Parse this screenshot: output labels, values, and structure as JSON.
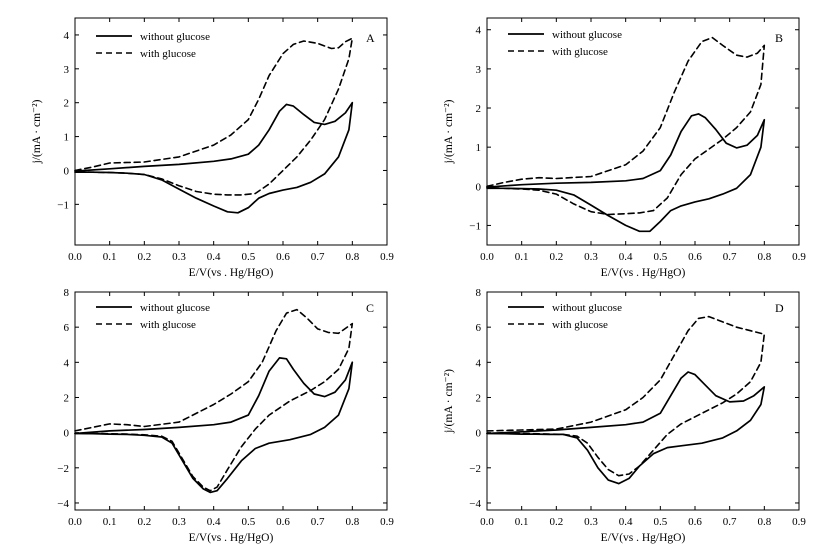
{
  "chart_data": [
    {
      "type": "line",
      "panel_label": "A",
      "xlabel": "E/V(vs . Hg/HgO)",
      "ylabel": "j/(mA · cm⁻²)",
      "xlim": [
        0.0,
        0.9
      ],
      "ylim": [
        -2.2,
        4.5
      ],
      "x_ticks": [
        "0.0",
        "0.1",
        "0.2",
        "0.3",
        "0.4",
        "0.5",
        "0.6",
        "0.7",
        "0.8",
        "0.9"
      ],
      "y_ticks": [
        -1,
        0,
        1,
        2,
        3,
        4
      ],
      "y_tick_labels": [
        "−1",
        "0",
        "1",
        "2",
        "3",
        "4"
      ],
      "grid": false,
      "legend_position": "top-left",
      "series": [
        {
          "name": "without glucose",
          "style": "solid",
          "x": [
            0.0,
            0.1,
            0.2,
            0.3,
            0.4,
            0.45,
            0.5,
            0.53,
            0.56,
            0.59,
            0.61,
            0.63,
            0.66,
            0.69,
            0.72,
            0.75,
            0.78,
            0.8,
            0.79,
            0.76,
            0.72,
            0.68,
            0.64,
            0.6,
            0.56,
            0.53,
            0.5,
            0.47,
            0.44,
            0.4,
            0.35,
            0.3,
            0.25,
            0.2,
            0.15,
            0.1,
            0.05,
            0.0
          ],
          "y": [
            -0.02,
            0.05,
            0.12,
            0.18,
            0.27,
            0.34,
            0.48,
            0.75,
            1.2,
            1.75,
            1.95,
            1.9,
            1.65,
            1.42,
            1.36,
            1.45,
            1.7,
            2.0,
            1.2,
            0.4,
            -0.1,
            -0.35,
            -0.5,
            -0.58,
            -0.68,
            -0.82,
            -1.1,
            -1.25,
            -1.22,
            -1.05,
            -0.82,
            -0.55,
            -0.28,
            -0.12,
            -0.08,
            -0.06,
            -0.05,
            -0.05
          ]
        },
        {
          "name": "with glucose",
          "style": "dashed",
          "x": [
            0.0,
            0.05,
            0.1,
            0.2,
            0.3,
            0.4,
            0.45,
            0.5,
            0.53,
            0.56,
            0.6,
            0.63,
            0.66,
            0.7,
            0.74,
            0.76,
            0.78,
            0.8,
            0.79,
            0.76,
            0.72,
            0.68,
            0.64,
            0.6,
            0.56,
            0.52,
            0.48,
            0.44,
            0.4,
            0.35,
            0.3,
            0.25,
            0.2,
            0.15,
            0.1,
            0.05,
            0.0
          ],
          "y": [
            0.0,
            0.1,
            0.22,
            0.25,
            0.4,
            0.75,
            1.05,
            1.5,
            2.1,
            2.8,
            3.45,
            3.72,
            3.82,
            3.75,
            3.6,
            3.62,
            3.8,
            3.9,
            3.3,
            2.4,
            1.5,
            0.9,
            0.4,
            0.0,
            -0.4,
            -0.68,
            -0.72,
            -0.72,
            -0.7,
            -0.62,
            -0.45,
            -0.25,
            -0.12,
            -0.08,
            -0.06,
            -0.05,
            -0.03
          ]
        }
      ]
    },
    {
      "type": "line",
      "panel_label": "B",
      "xlabel": "E/V(vs . Hg/HgO)",
      "ylabel": "j/(mA · cm⁻²)",
      "xlim": [
        0.0,
        0.9
      ],
      "ylim": [
        -1.5,
        4.3
      ],
      "x_ticks": [
        "0.0",
        "0.1",
        "0.2",
        "0.3",
        "0.4",
        "0.5",
        "0.6",
        "0.7",
        "0.8",
        "0.9"
      ],
      "y_ticks": [
        -1,
        0,
        1,
        2,
        3,
        4
      ],
      "y_tick_labels": [
        "−1",
        "0",
        "1",
        "2",
        "3",
        "4"
      ],
      "grid": false,
      "legend_position": "top-left",
      "series": [
        {
          "name": "without glucose",
          "style": "solid",
          "x": [
            0.0,
            0.1,
            0.2,
            0.3,
            0.4,
            0.45,
            0.5,
            0.53,
            0.56,
            0.59,
            0.61,
            0.63,
            0.66,
            0.69,
            0.72,
            0.75,
            0.78,
            0.8,
            0.79,
            0.76,
            0.72,
            0.68,
            0.64,
            0.6,
            0.56,
            0.53,
            0.5,
            0.47,
            0.44,
            0.4,
            0.35,
            0.3,
            0.25,
            0.2,
            0.15,
            0.1,
            0.05,
            0.0
          ],
          "y": [
            -0.02,
            0.04,
            0.08,
            0.1,
            0.14,
            0.2,
            0.4,
            0.8,
            1.4,
            1.8,
            1.85,
            1.75,
            1.45,
            1.1,
            0.98,
            1.05,
            1.3,
            1.7,
            1.0,
            0.3,
            -0.05,
            -0.2,
            -0.32,
            -0.4,
            -0.5,
            -0.62,
            -0.9,
            -1.15,
            -1.15,
            -1.0,
            -0.75,
            -0.48,
            -0.22,
            -0.1,
            -0.07,
            -0.06,
            -0.05,
            -0.05
          ]
        },
        {
          "name": "with glucose",
          "style": "dashed",
          "x": [
            0.0,
            0.05,
            0.1,
            0.15,
            0.2,
            0.3,
            0.4,
            0.45,
            0.5,
            0.54,
            0.58,
            0.62,
            0.65,
            0.68,
            0.72,
            0.75,
            0.78,
            0.8,
            0.79,
            0.76,
            0.72,
            0.68,
            0.64,
            0.6,
            0.56,
            0.52,
            0.48,
            0.44,
            0.4,
            0.35,
            0.3,
            0.25,
            0.2,
            0.15,
            0.1,
            0.05,
            0.0
          ],
          "y": [
            0.0,
            0.1,
            0.18,
            0.22,
            0.2,
            0.25,
            0.55,
            0.9,
            1.5,
            2.4,
            3.2,
            3.7,
            3.8,
            3.6,
            3.35,
            3.3,
            3.4,
            3.6,
            2.6,
            1.9,
            1.5,
            1.2,
            0.95,
            0.7,
            0.3,
            -0.3,
            -0.62,
            -0.68,
            -0.7,
            -0.72,
            -0.65,
            -0.45,
            -0.2,
            -0.1,
            -0.07,
            -0.05,
            -0.03
          ]
        }
      ]
    },
    {
      "type": "line",
      "panel_label": "C",
      "xlabel": "E/V(vs . Hg/HgO)",
      "ylabel": "",
      "xlim": [
        0.0,
        0.9
      ],
      "ylim": [
        -4.4,
        8.0
      ],
      "x_ticks": [
        "0.0",
        "0.1",
        "0.2",
        "0.3",
        "0.4",
        "0.5",
        "0.6",
        "0.7",
        "0.8",
        "0.9"
      ],
      "y_ticks": [
        -4,
        -2,
        0,
        2,
        4,
        6,
        8
      ],
      "y_tick_labels": [
        "−4",
        "−2",
        "0",
        "2",
        "4",
        "6",
        "8"
      ],
      "grid": false,
      "legend_position": "top-left",
      "series": [
        {
          "name": "without glucose",
          "style": "solid",
          "x": [
            0.0,
            0.1,
            0.2,
            0.3,
            0.4,
            0.45,
            0.5,
            0.53,
            0.56,
            0.59,
            0.61,
            0.63,
            0.66,
            0.69,
            0.72,
            0.75,
            0.78,
            0.8,
            0.79,
            0.76,
            0.72,
            0.68,
            0.62,
            0.56,
            0.52,
            0.48,
            0.44,
            0.41,
            0.39,
            0.37,
            0.34,
            0.31,
            0.28,
            0.25,
            0.2,
            0.15,
            0.1,
            0.05,
            0.0
          ],
          "y": [
            -0.05,
            0.1,
            0.18,
            0.3,
            0.45,
            0.6,
            1.0,
            2.1,
            3.5,
            4.25,
            4.2,
            3.6,
            2.8,
            2.2,
            2.05,
            2.3,
            3.0,
            4.0,
            2.5,
            1.0,
            0.3,
            -0.1,
            -0.4,
            -0.6,
            -0.9,
            -1.6,
            -2.6,
            -3.3,
            -3.4,
            -3.2,
            -2.6,
            -1.6,
            -0.6,
            -0.25,
            -0.15,
            -0.1,
            -0.08,
            -0.06,
            -0.05
          ]
        },
        {
          "name": "with glucose",
          "style": "dashed",
          "x": [
            0.0,
            0.05,
            0.1,
            0.15,
            0.2,
            0.3,
            0.4,
            0.45,
            0.5,
            0.54,
            0.58,
            0.61,
            0.64,
            0.67,
            0.7,
            0.73,
            0.76,
            0.8,
            0.79,
            0.76,
            0.72,
            0.68,
            0.62,
            0.56,
            0.52,
            0.48,
            0.44,
            0.41,
            0.39,
            0.37,
            0.34,
            0.31,
            0.28,
            0.25,
            0.2,
            0.15,
            0.1,
            0.05,
            0.0
          ],
          "y": [
            0.1,
            0.3,
            0.5,
            0.45,
            0.35,
            0.6,
            1.6,
            2.2,
            2.9,
            4.0,
            5.8,
            6.8,
            7.0,
            6.5,
            5.9,
            5.7,
            5.65,
            6.2,
            4.8,
            3.6,
            2.9,
            2.4,
            1.8,
            1.0,
            0.2,
            -0.8,
            -2.1,
            -3.1,
            -3.3,
            -3.1,
            -2.5,
            -1.5,
            -0.5,
            -0.2,
            -0.12,
            -0.08,
            -0.06,
            -0.05,
            -0.04
          ]
        }
      ]
    },
    {
      "type": "line",
      "panel_label": "D",
      "xlabel": "E/V(vs . Hg/HgO)",
      "ylabel": "j/(mA · cm⁻²)",
      "xlim": [
        0.0,
        0.9
      ],
      "ylim": [
        -4.4,
        8.0
      ],
      "x_ticks": [
        "0.0",
        "0.1",
        "0.2",
        "0.3",
        "0.4",
        "0.5",
        "0.6",
        "0.7",
        "0.8",
        "0.9"
      ],
      "y_ticks": [
        -4,
        -2,
        0,
        2,
        4,
        6,
        8
      ],
      "y_tick_labels": [
        "−4",
        "−2",
        "0",
        "2",
        "4",
        "6",
        "8"
      ],
      "grid": false,
      "legend_position": "top-left",
      "series": [
        {
          "name": "without glucose",
          "style": "solid",
          "x": [
            0.0,
            0.1,
            0.2,
            0.3,
            0.4,
            0.45,
            0.5,
            0.53,
            0.56,
            0.58,
            0.6,
            0.63,
            0.66,
            0.7,
            0.74,
            0.77,
            0.8,
            0.79,
            0.76,
            0.72,
            0.68,
            0.62,
            0.56,
            0.52,
            0.48,
            0.44,
            0.41,
            0.38,
            0.35,
            0.32,
            0.29,
            0.26,
            0.22,
            0.18,
            0.14,
            0.1,
            0.05,
            0.0
          ],
          "y": [
            -0.05,
            0.05,
            0.15,
            0.3,
            0.45,
            0.6,
            1.1,
            2.1,
            3.1,
            3.45,
            3.3,
            2.7,
            2.1,
            1.75,
            1.8,
            2.1,
            2.6,
            1.6,
            0.7,
            0.1,
            -0.3,
            -0.6,
            -0.75,
            -0.85,
            -1.2,
            -1.9,
            -2.6,
            -2.9,
            -2.7,
            -2.0,
            -1.0,
            -0.3,
            -0.1,
            -0.1,
            -0.08,
            -0.08,
            -0.06,
            -0.05
          ]
        },
        {
          "name": "with glucose",
          "style": "dashed",
          "x": [
            0.0,
            0.1,
            0.2,
            0.3,
            0.4,
            0.45,
            0.5,
            0.54,
            0.58,
            0.61,
            0.64,
            0.68,
            0.72,
            0.76,
            0.8,
            0.79,
            0.76,
            0.72,
            0.68,
            0.62,
            0.56,
            0.52,
            0.48,
            0.44,
            0.41,
            0.38,
            0.35,
            0.32,
            0.29,
            0.26,
            0.22,
            0.18,
            0.14,
            0.1,
            0.05,
            0.0
          ],
          "y": [
            0.1,
            0.15,
            0.2,
            0.6,
            1.3,
            2.0,
            3.0,
            4.4,
            5.8,
            6.5,
            6.6,
            6.3,
            6.0,
            5.8,
            5.6,
            4.0,
            2.9,
            2.2,
            1.7,
            1.1,
            0.5,
            -0.1,
            -1.0,
            -1.9,
            -2.35,
            -2.45,
            -2.1,
            -1.4,
            -0.6,
            -0.2,
            -0.1,
            -0.08,
            -0.06,
            -0.05,
            -0.04,
            -0.03
          ]
        }
      ]
    }
  ]
}
